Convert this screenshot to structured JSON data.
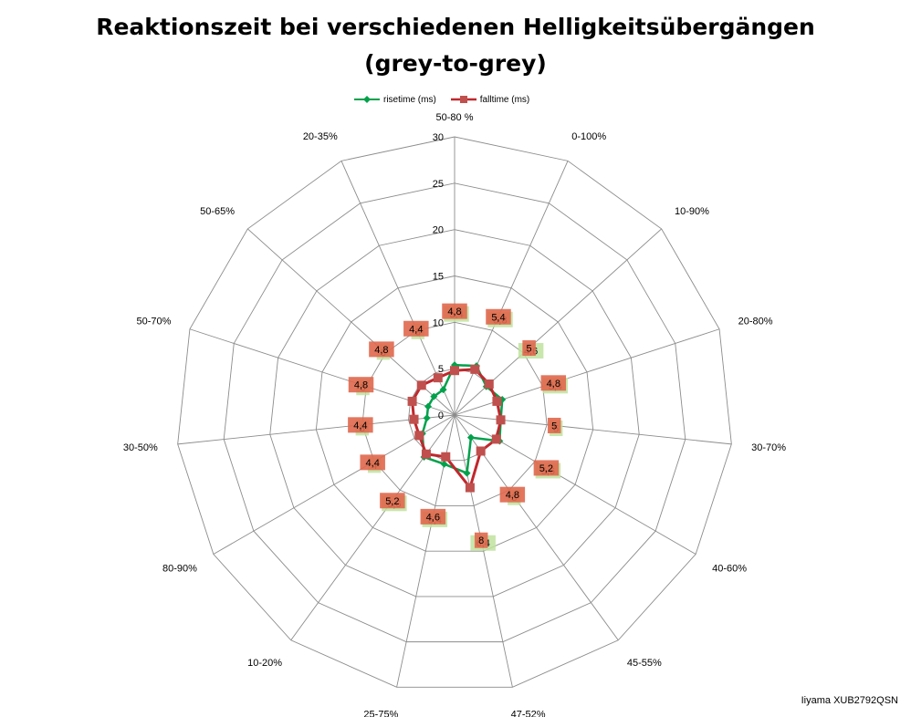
{
  "chart_data": {
    "type": "radar",
    "title": [
      "Reaktionszeit bei verschiedenen Helligkeitsübergängen",
      "(grey-to-grey)"
    ],
    "categories": [
      "50-80 %",
      "0-100%",
      "10-90%",
      "20-80%",
      "30-70%",
      "40-60%",
      "45-55%",
      "47-52%",
      "25-75%",
      "10-20%",
      "80-90%",
      "30-50%",
      "50-70%",
      "50-65%",
      "20-35%"
    ],
    "rlim": [
      0,
      30
    ],
    "r_ticks": [
      "0",
      "5",
      "10",
      "15",
      "20",
      "25",
      "30"
    ],
    "grid": true,
    "legend_position": "top",
    "series": [
      {
        "name": "risetime (ms)",
        "color": "#00a14b",
        "marker": "diamond",
        "values": [
          5.4,
          5.8,
          4.6,
          5.4,
          5.0,
          5.6,
          3.0,
          6.4,
          5.4,
          5.6,
          4.0,
          3.0,
          3.0,
          3.0,
          3.0
        ],
        "label_bg": "#bfe29f",
        "data_labels": [
          "5,4",
          "5,8",
          "4,6",
          "5,4",
          "5",
          "5,6",
          "3",
          "6,4",
          "5,4",
          "5,6",
          "4",
          "3",
          "3",
          "3",
          "3"
        ]
      },
      {
        "name": "falltime (ms)",
        "color": "#c0282d",
        "marker": "square",
        "values": [
          4.8,
          5.4,
          5.0,
          4.8,
          5.0,
          5.2,
          4.8,
          8.0,
          4.6,
          5.2,
          4.4,
          4.4,
          4.8,
          4.8,
          4.4
        ],
        "label_bg": "#f08080",
        "data_labels": [
          "4,8",
          "5,4",
          "5",
          "4,8",
          "5",
          "5,2",
          "4,8",
          "8",
          "4,6",
          "5,2",
          "4,4",
          "4,4",
          "4,8",
          "4,8",
          "4,4"
        ]
      }
    ]
  },
  "footer_note": "Iiyama XUB2792QSN"
}
